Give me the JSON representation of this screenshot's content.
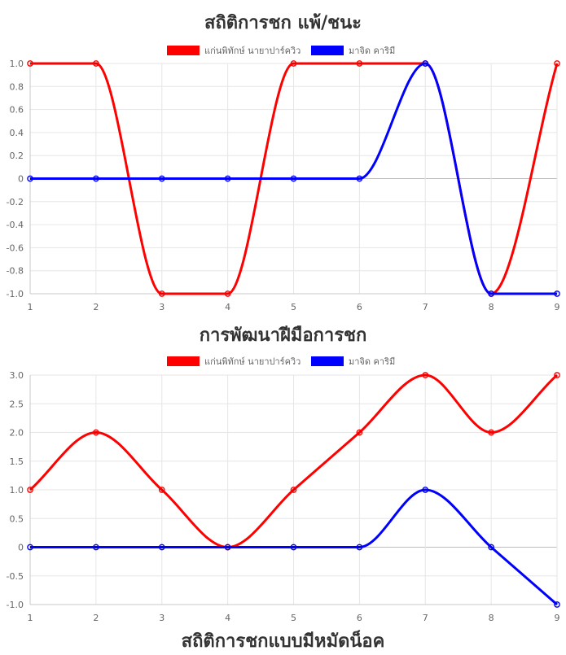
{
  "chart_data": [
    {
      "type": "line",
      "title": "สถิติการชก แพ้/ชนะ",
      "categories": [
        "1",
        "2",
        "3",
        "4",
        "5",
        "6",
        "7",
        "8",
        "9"
      ],
      "series": [
        {
          "name": "แก่นพิทักษ์ นายาปาร์ควิว",
          "color": "#ff0000",
          "values": [
            1,
            1,
            -1,
            -1,
            1,
            1,
            1,
            -1,
            1
          ]
        },
        {
          "name": "มาจิด คาริมี",
          "color": "#0000ff",
          "values": [
            0,
            0,
            0,
            0,
            0,
            0,
            1,
            -1,
            -1
          ]
        }
      ],
      "yticks": [
        "1.0",
        "0.8",
        "0.6",
        "0.4",
        "0.2",
        "0",
        "-0.2",
        "-0.4",
        "-0.6",
        "-0.8",
        "-1.0"
      ],
      "ylim": [
        -1,
        1
      ],
      "legend_position": "top",
      "grid": true
    },
    {
      "type": "line",
      "title": "การพัฒนาฝีมือการชก",
      "categories": [
        "1",
        "2",
        "3",
        "4",
        "5",
        "6",
        "7",
        "8",
        "9"
      ],
      "series": [
        {
          "name": "แก่นพิทักษ์ นายาปาร์ควิว",
          "color": "#ff0000",
          "values": [
            1,
            2,
            1,
            0,
            1,
            2,
            3,
            2,
            3
          ]
        },
        {
          "name": "มาจิด คาริมี",
          "color": "#0000ff",
          "values": [
            0,
            0,
            0,
            0,
            0,
            0,
            1,
            0,
            -1
          ]
        }
      ],
      "yticks": [
        "3.0",
        "2.5",
        "2.0",
        "1.5",
        "1.0",
        "0.5",
        "0",
        "-0.5",
        "-1.0"
      ],
      "ylim": [
        -1,
        3
      ],
      "legend_position": "top",
      "grid": true
    }
  ],
  "next_chart_title_partial": "สถิติการชกแบบมีหมัดน็อค"
}
